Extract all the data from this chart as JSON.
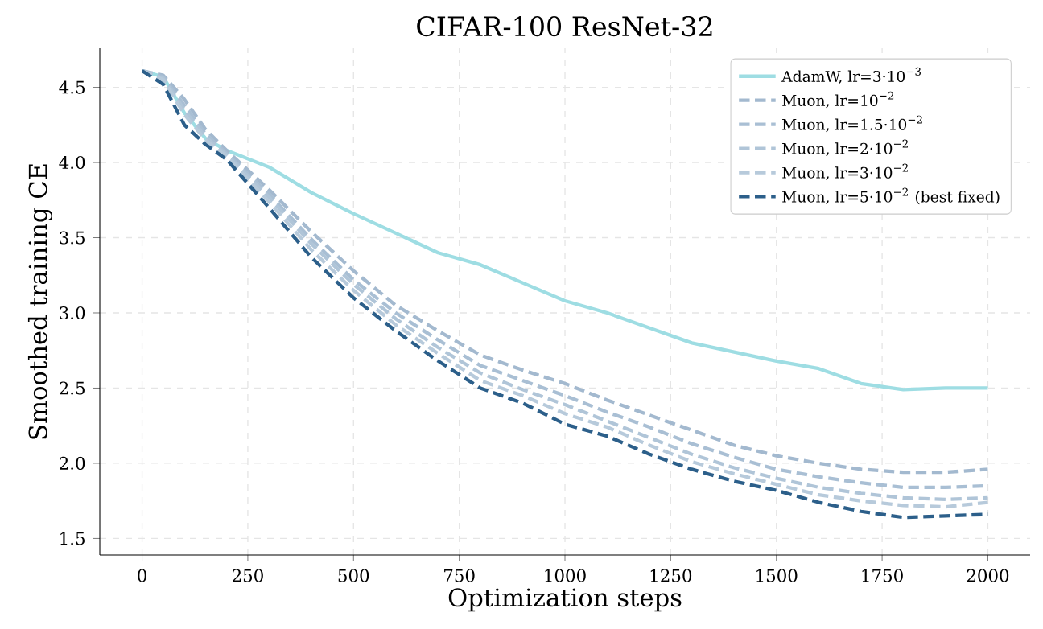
{
  "chart_data": {
    "type": "line",
    "title": "CIFAR-100 ResNet-32",
    "xlabel": "Optimization steps",
    "ylabel": "Smoothed training CE",
    "x": [
      0,
      50,
      100,
      150,
      200,
      300,
      400,
      500,
      600,
      700,
      800,
      900,
      1000,
      1100,
      1200,
      1300,
      1400,
      1500,
      1600,
      1700,
      1800,
      1900,
      2000
    ],
    "xlim": [
      -100,
      2100
    ],
    "ylim": [
      1.39,
      4.76
    ],
    "xticks": [
      0,
      250,
      500,
      750,
      1000,
      1250,
      1500,
      1750,
      2000
    ],
    "yticks": [
      1.5,
      {
        "value": 2,
        "label": "2.0"
      },
      2.5,
      {
        "value": 3,
        "label": "3.0"
      },
      3.5,
      {
        "value": 4,
        "label": "4.0"
      },
      4.5
    ],
    "grid": true,
    "legend": "top right",
    "marker": "none",
    "series": [
      {
        "name": "AdamW, lr=3·10$^{−3}$",
        "color": "#9edde3",
        "line_style": "solid",
        "values": [
          4.61,
          4.57,
          4.33,
          4.16,
          4.08,
          3.97,
          3.8,
          3.66,
          3.53,
          3.4,
          3.32,
          3.2,
          3.08,
          3.0,
          2.9,
          2.8,
          2.74,
          2.68,
          2.63,
          2.53,
          2.49,
          2.5,
          2.5
        ]
      },
      {
        "name": "Muon, lr=10$^{−2}$",
        "color": "#a3b9cf",
        "line_style": "dashed",
        "values": [
          4.61,
          4.58,
          4.42,
          4.22,
          4.08,
          3.82,
          3.54,
          3.28,
          3.05,
          2.88,
          2.72,
          2.62,
          2.53,
          2.42,
          2.32,
          2.22,
          2.12,
          2.05,
          2.0,
          1.96,
          1.94,
          1.94,
          1.96
        ]
      },
      {
        "name": "Muon, lr=1.5·10$^{−2}$",
        "color": "#a9bfd4",
        "line_style": "dashed",
        "values": [
          4.61,
          4.57,
          4.38,
          4.19,
          4.06,
          3.79,
          3.49,
          3.22,
          3.0,
          2.82,
          2.65,
          2.55,
          2.45,
          2.34,
          2.24,
          2.13,
          2.04,
          1.96,
          1.91,
          1.87,
          1.84,
          1.84,
          1.85
        ]
      },
      {
        "name": "Muon, lr=2·10$^{−2}$",
        "color": "#b0c5d8",
        "line_style": "dashed",
        "values": [
          4.61,
          4.56,
          4.35,
          4.17,
          4.05,
          3.77,
          3.46,
          3.19,
          2.96,
          2.77,
          2.6,
          2.49,
          2.39,
          2.28,
          2.17,
          2.06,
          1.97,
          1.9,
          1.84,
          1.8,
          1.77,
          1.76,
          1.77
        ]
      },
      {
        "name": "Muon, lr=3·10$^{−2}$",
        "color": "#b7cadb",
        "line_style": "dashed",
        "values": [
          4.61,
          4.55,
          4.32,
          4.15,
          4.04,
          3.74,
          3.42,
          3.15,
          2.92,
          2.73,
          2.55,
          2.45,
          2.33,
          2.24,
          2.12,
          2.01,
          1.93,
          1.86,
          1.79,
          1.75,
          1.72,
          1.71,
          1.74
        ]
      },
      {
        "name": "Muon, lr=5·10$^{−2}$ (best fixed)",
        "color": "#2c5f8a",
        "line_style": "dashed",
        "values": [
          4.61,
          4.52,
          4.25,
          4.12,
          4.02,
          3.7,
          3.37,
          3.1,
          2.88,
          2.68,
          2.5,
          2.4,
          2.26,
          2.18,
          2.06,
          1.96,
          1.88,
          1.82,
          1.74,
          1.68,
          1.64,
          1.65,
          1.66
        ]
      }
    ]
  }
}
